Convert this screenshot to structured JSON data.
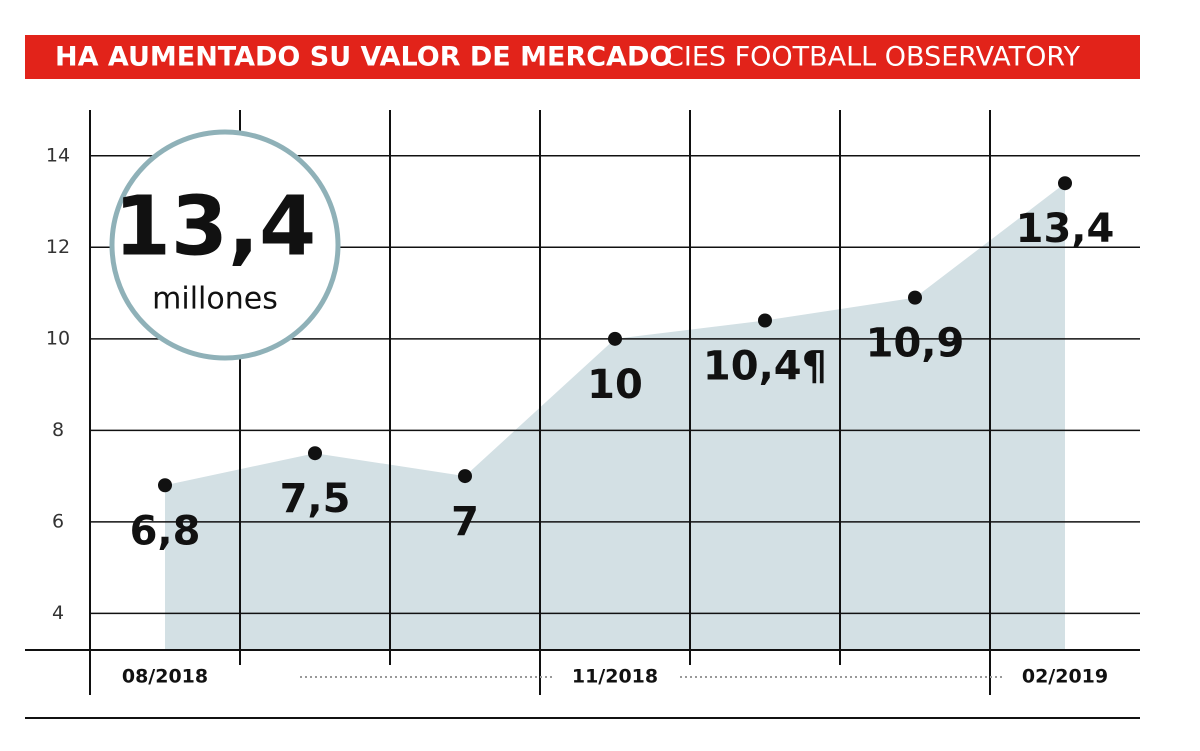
{
  "chart_data": {
    "type": "area",
    "title": "HA AUMENTADO SU VALOR DE MERCADO",
    "subtitle": "CIES FOOTBALL OBSERVATORY",
    "highlight": {
      "value": 13.4,
      "label": "13,4",
      "unit": "millones"
    },
    "categories": [
      "08/2018",
      null,
      null,
      "11/2018",
      null,
      null,
      "02/2019"
    ],
    "values": [
      6.8,
      7.5,
      7,
      10,
      10.4,
      10.9,
      13.4
    ],
    "value_labels": [
      "6,8",
      "7,5",
      "7",
      "10",
      "10,4¶",
      "10,9",
      "13,4"
    ],
    "color": "#d3e0e4",
    "ylim": [
      3.2,
      15
    ],
    "yticks": [
      4,
      6,
      8,
      10,
      12,
      14
    ],
    "grid": true
  }
}
